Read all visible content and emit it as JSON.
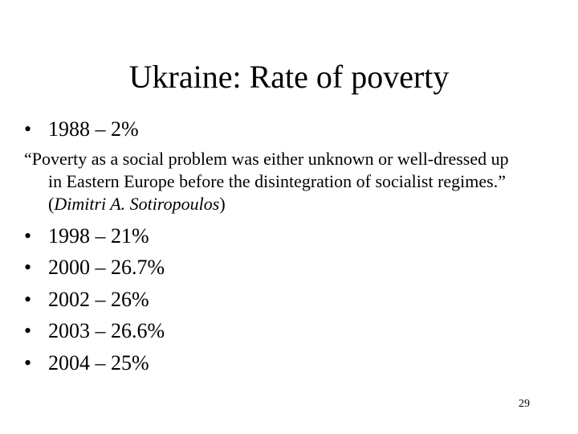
{
  "slide": {
    "title": "Ukraine: Rate of poverty",
    "first_bullet": "1988 – 2%",
    "quote": {
      "line1": "“Poverty as a social problem was either unknown or well-dressed up",
      "line2": "in Eastern Europe before the disintegration of socialist regimes.”",
      "open_paren": "(",
      "author": "Dimitri A. Sotiropoulos",
      "close_paren": ")"
    },
    "bullets": [
      "1998 – 21%",
      "2000 – 26.7%",
      "2002 – 26%",
      "2003 – 26.6%",
      "2004 – 25%"
    ],
    "bullet_glyph": "•",
    "page_number": "29"
  }
}
